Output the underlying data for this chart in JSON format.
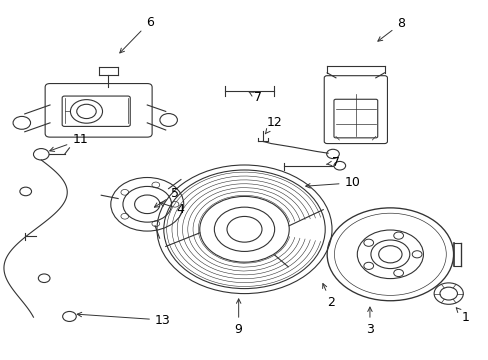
{
  "background_color": "#ffffff",
  "fig_width": 4.89,
  "fig_height": 3.6,
  "dpi": 100,
  "line_color": "#333333",
  "text_color": "#000000",
  "font_size": 9,
  "labels_data": {
    "1": [
      0.955,
      0.115,
      0.93,
      0.15
    ],
    "2": [
      0.678,
      0.158,
      0.658,
      0.22
    ],
    "3": [
      0.758,
      0.082,
      0.758,
      0.155
    ],
    "4": [
      0.368,
      0.418,
      0.318,
      0.44
    ],
    "5": [
      0.358,
      0.462,
      0.308,
      0.418
    ],
    "6": [
      0.305,
      0.942,
      0.238,
      0.848
    ],
    "7a": [
      0.528,
      0.732,
      0.508,
      0.748
    ],
    "7b": [
      0.688,
      0.548,
      0.668,
      0.544
    ],
    "8": [
      0.822,
      0.938,
      0.768,
      0.882
    ],
    "9": [
      0.488,
      0.082,
      0.488,
      0.178
    ],
    "10": [
      0.722,
      0.492,
      0.618,
      0.482
    ],
    "11": [
      0.162,
      0.612,
      0.092,
      0.578
    ],
    "12": [
      0.562,
      0.662,
      0.542,
      0.628
    ],
    "13": [
      0.332,
      0.108,
      0.148,
      0.125
    ]
  }
}
